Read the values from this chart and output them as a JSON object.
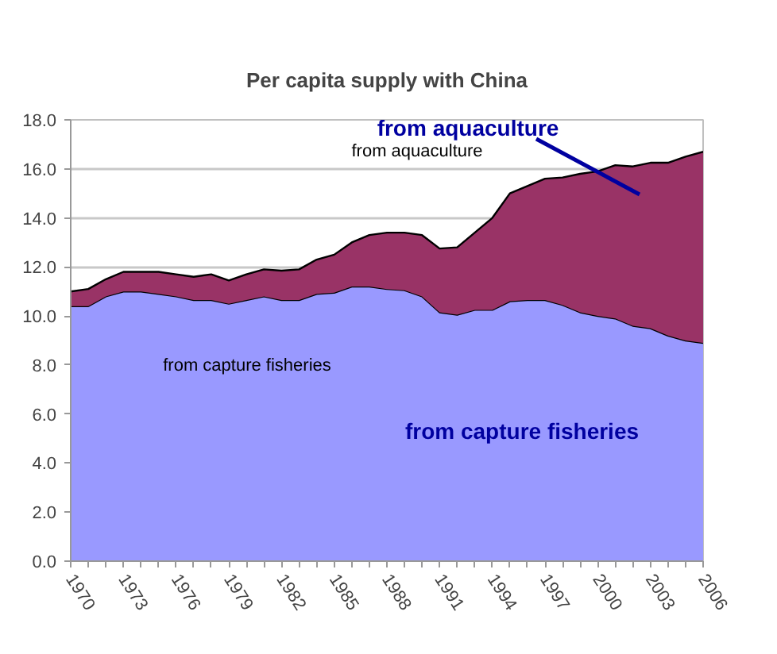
{
  "chart_data": {
    "type": "area",
    "title": "Per capita supply with China",
    "stacked": true,
    "x": [
      1970,
      1971,
      1972,
      1973,
      1974,
      1975,
      1976,
      1977,
      1978,
      1979,
      1980,
      1981,
      1982,
      1983,
      1984,
      1985,
      1986,
      1987,
      1988,
      1989,
      1990,
      1991,
      1992,
      1993,
      1994,
      1995,
      1996,
      1997,
      1998,
      1999,
      2000,
      2001,
      2002,
      2003,
      2004,
      2005,
      2006
    ],
    "series": [
      {
        "color": "#9999ff",
        "values": [
          10.4,
          10.4,
          10.8,
          11.0,
          11.0,
          10.9,
          10.8,
          10.65,
          10.65,
          10.5,
          10.65,
          10.8,
          10.65,
          10.65,
          10.9,
          10.95,
          11.2,
          11.2,
          11.1,
          11.05,
          10.8,
          10.15,
          10.05,
          10.25,
          10.25,
          10.6,
          10.65,
          10.65,
          10.45,
          10.15,
          10.0,
          9.9,
          9.6,
          9.5,
          9.2,
          9.0,
          8.9
        ]
      },
      {
        "color": "#993366",
        "values": [
          0.6,
          0.7,
          0.7,
          0.8,
          0.8,
          0.9,
          0.9,
          0.95,
          1.05,
          0.95,
          1.05,
          1.1,
          1.2,
          1.25,
          1.4,
          1.55,
          1.8,
          2.1,
          2.3,
          2.35,
          2.5,
          2.6,
          2.75,
          3.15,
          3.75,
          4.4,
          4.65,
          4.95,
          5.2,
          5.65,
          5.9,
          6.25,
          6.5,
          6.75,
          7.05,
          7.5,
          7.8
        ]
      }
    ],
    "xlim": [
      1970,
      2006
    ],
    "xticks": [
      1970,
      {
        "value": 1971,
        "label": null
      },
      {
        "value": 1972,
        "label": null
      },
      1973,
      {
        "value": 1974,
        "label": null
      },
      {
        "value": 1975,
        "label": null
      },
      1976,
      {
        "value": 1977,
        "label": null
      },
      {
        "value": 1978,
        "label": null
      },
      1979,
      {
        "value": 1980,
        "label": null
      },
      {
        "value": 1981,
        "label": null
      },
      1982,
      {
        "value": 1983,
        "label": null
      },
      {
        "value": 1984,
        "label": null
      },
      1985,
      {
        "value": 1986,
        "label": null
      },
      {
        "value": 1987,
        "label": null
      },
      1988,
      {
        "value": 1989,
        "label": null
      },
      {
        "value": 1990,
        "label": null
      },
      1991,
      {
        "value": 1992,
        "label": null
      },
      {
        "value": 1993,
        "label": null
      },
      1994,
      {
        "value": 1995,
        "label": null
      },
      {
        "value": 1996,
        "label": null
      },
      1997,
      {
        "value": 1998,
        "label": null
      },
      {
        "value": 1999,
        "label": null
      },
      2000,
      {
        "value": 2001,
        "label": null
      },
      {
        "value": 2002,
        "label": null
      },
      2003,
      {
        "value": 2004,
        "label": null
      },
      {
        "value": 2005,
        "label": null
      },
      2006
    ],
    "ylim": [
      0,
      18
    ],
    "yticks": [
      {
        "value": 0,
        "label": "0.0"
      },
      {
        "value": 2,
        "label": "2.0"
      },
      {
        "value": 4,
        "label": "4.0"
      },
      {
        "value": 6,
        "label": "6.0"
      },
      {
        "value": 8,
        "label": "8.0"
      },
      {
        "value": 10,
        "label": "10.0"
      },
      {
        "value": 12,
        "label": "12.0"
      },
      {
        "value": 14,
        "label": "14.0"
      },
      {
        "value": 16,
        "label": "16.0"
      },
      {
        "value": 18,
        "label": "18.0"
      }
    ],
    "grid": "y",
    "annotations": [
      "from aquaculture",
      "from aquaculture",
      "from capture fisheries",
      "from capture fisheries"
    ]
  }
}
